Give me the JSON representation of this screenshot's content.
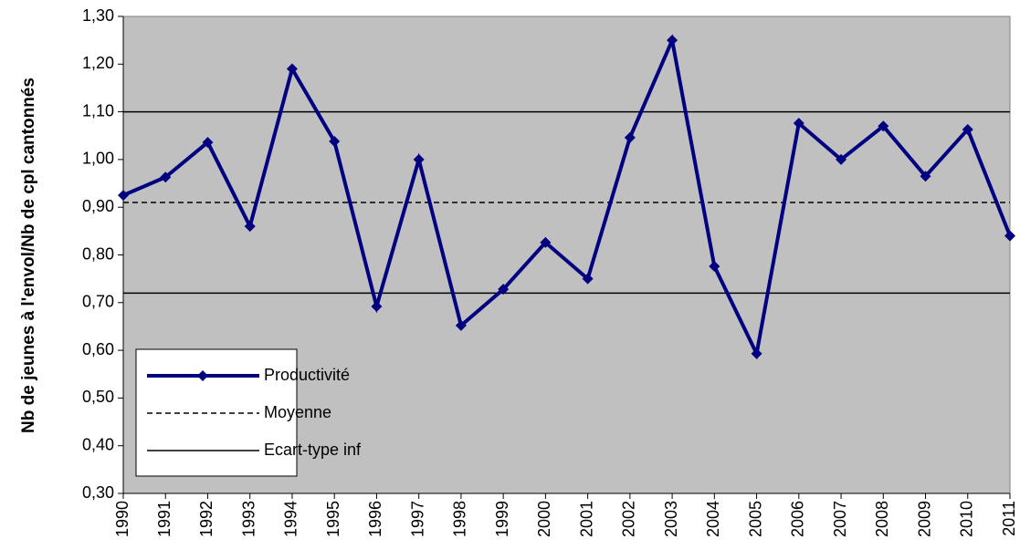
{
  "chart_data": {
    "type": "line",
    "y_label": "Nb de jeunes à l'envol/Nb de cpl cantonnés",
    "categories": [
      "1990",
      "1991",
      "1992",
      "1993",
      "1994",
      "1995",
      "1996",
      "1997",
      "1998",
      "1999",
      "2000",
      "2001",
      "2002",
      "2003",
      "2004",
      "2005",
      "2006",
      "2007",
      "2008",
      "2009",
      "2010",
      "2011"
    ],
    "series": [
      {
        "name": "Productivité",
        "color": "#000080",
        "style": "marker",
        "values": [
          0.925,
          0.963,
          1.036,
          0.86,
          1.19,
          1.038,
          0.692,
          1.0,
          0.652,
          0.728,
          0.826,
          0.75,
          1.046,
          1.25,
          0.776,
          0.593,
          1.076,
          1.0,
          1.07,
          0.965,
          1.063,
          0.84
        ]
      },
      {
        "name": "Moyenne",
        "color": "#000000",
        "style": "dashed",
        "values": [
          0.91,
          0.91,
          0.91,
          0.91,
          0.91,
          0.91,
          0.91,
          0.91,
          0.91,
          0.91,
          0.91,
          0.91,
          0.91,
          0.91,
          0.91,
          0.91,
          0.91,
          0.91,
          0.91,
          0.91,
          0.91,
          0.91
        ]
      },
      {
        "name": "Ecart-type inf",
        "color": "#000000",
        "style": "solid",
        "values": [
          0.72,
          0.72,
          0.72,
          0.72,
          0.72,
          0.72,
          0.72,
          0.72,
          0.72,
          0.72,
          0.72,
          0.72,
          0.72,
          0.72,
          0.72,
          0.72,
          0.72,
          0.72,
          0.72,
          0.72,
          0.72,
          0.72
        ]
      },
      {
        "color": "#000000",
        "style": "solid",
        "values": [
          1.1,
          1.1,
          1.1,
          1.1,
          1.1,
          1.1,
          1.1,
          1.1,
          1.1,
          1.1,
          1.1,
          1.1,
          1.1,
          1.1,
          1.1,
          1.1,
          1.1,
          1.1,
          1.1,
          1.1,
          1.1,
          1.1
        ]
      }
    ],
    "ylim": [
      0.3,
      1.3
    ],
    "yticks": [
      {
        "value": 0.3,
        "label": "0,30"
      },
      {
        "value": 0.4,
        "label": "0,40"
      },
      {
        "value": 0.5,
        "label": "0,50"
      },
      {
        "value": 0.6,
        "label": "0,60"
      },
      {
        "value": 0.7,
        "label": "0,70"
      },
      {
        "value": 0.8,
        "label": "0,80"
      },
      {
        "value": 0.9,
        "label": "0,90"
      },
      {
        "value": 1.0,
        "label": "1,00"
      },
      {
        "value": 1.1,
        "label": "1,10"
      },
      {
        "value": 1.2,
        "label": "1,20"
      },
      {
        "value": 1.3,
        "label": "1,30"
      }
    ],
    "plot_background": "#c0c0c0",
    "legend": "bottom-left"
  }
}
